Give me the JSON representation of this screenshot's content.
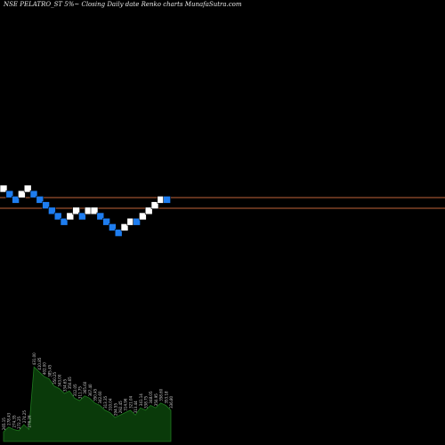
{
  "title": "NSE PELATRO_ST 5%~  Closing Daily date  Renko  charts MunafaSutra.com",
  "colors": {
    "background": "#000000",
    "up_brick": "#ffffff",
    "down_brick": "#1e7df0",
    "brick_border": "#000000",
    "ref_line": "#c0643a",
    "volume_fill": "#0a3a0a",
    "volume_stroke": "#1f7a1f",
    "label": "#cccccc"
  },
  "chart_data": {
    "type": "renko",
    "title": "NSE PELATRO_ST 5%~  Closing Daily date  Renko  charts MunafaSutra.com",
    "brick_size": "5%",
    "reference_levels": [
      "upper",
      "lower"
    ],
    "bricks": [
      {
        "dir": "up",
        "level": 0
      },
      {
        "dir": "down",
        "level": -1
      },
      {
        "dir": "down",
        "level": -2
      },
      {
        "dir": "up",
        "level": -1
      },
      {
        "dir": "up",
        "level": 0
      },
      {
        "dir": "down",
        "level": -1
      },
      {
        "dir": "down",
        "level": -2
      },
      {
        "dir": "down",
        "level": -3
      },
      {
        "dir": "down",
        "level": -4
      },
      {
        "dir": "down",
        "level": -5
      },
      {
        "dir": "down",
        "level": -6
      },
      {
        "dir": "up",
        "level": -5
      },
      {
        "dir": "up",
        "level": -4
      },
      {
        "dir": "down",
        "level": -5
      },
      {
        "dir": "up",
        "level": -4
      },
      {
        "dir": "up",
        "level": -4
      },
      {
        "dir": "down",
        "level": -5
      },
      {
        "dir": "down",
        "level": -6
      },
      {
        "dir": "down",
        "level": -7
      },
      {
        "dir": "down",
        "level": -8
      },
      {
        "dir": "up",
        "level": -7
      },
      {
        "dir": "up",
        "level": -6
      },
      {
        "dir": "down",
        "level": -6
      },
      {
        "dir": "up",
        "level": -5
      },
      {
        "dir": "up",
        "level": -4
      },
      {
        "dir": "up",
        "level": -3
      },
      {
        "dir": "up",
        "level": -2
      },
      {
        "dir": "down",
        "level": -2
      }
    ],
    "volume_labels": [
      "265.15",
      "278.43",
      "274.35",
      "272.25",
      "274.25",
      "276.26",
      "431.00",
      "410.85",
      "402.00",
      "385.45",
      "350.25",
      "343.00",
      "334.65",
      "350.65",
      "312.05",
      "311.75",
      "365.60",
      "367.40",
      "350.45",
      "342.60",
      "313.35",
      "310.04",
      "294.55",
      "292.45",
      "314.96",
      "321.04",
      "313.44",
      "341.14",
      "338.75",
      "348.05",
      "350.95",
      "358.60",
      "353.18",
      "336.80"
    ],
    "volume_values": [
      8,
      12,
      10,
      9,
      14,
      10,
      62,
      58,
      54,
      52,
      46,
      44,
      40,
      42,
      36,
      34,
      38,
      36,
      32,
      30,
      26,
      24,
      20,
      22,
      24,
      26,
      22,
      28,
      26,
      30,
      28,
      32,
      30,
      26
    ]
  }
}
